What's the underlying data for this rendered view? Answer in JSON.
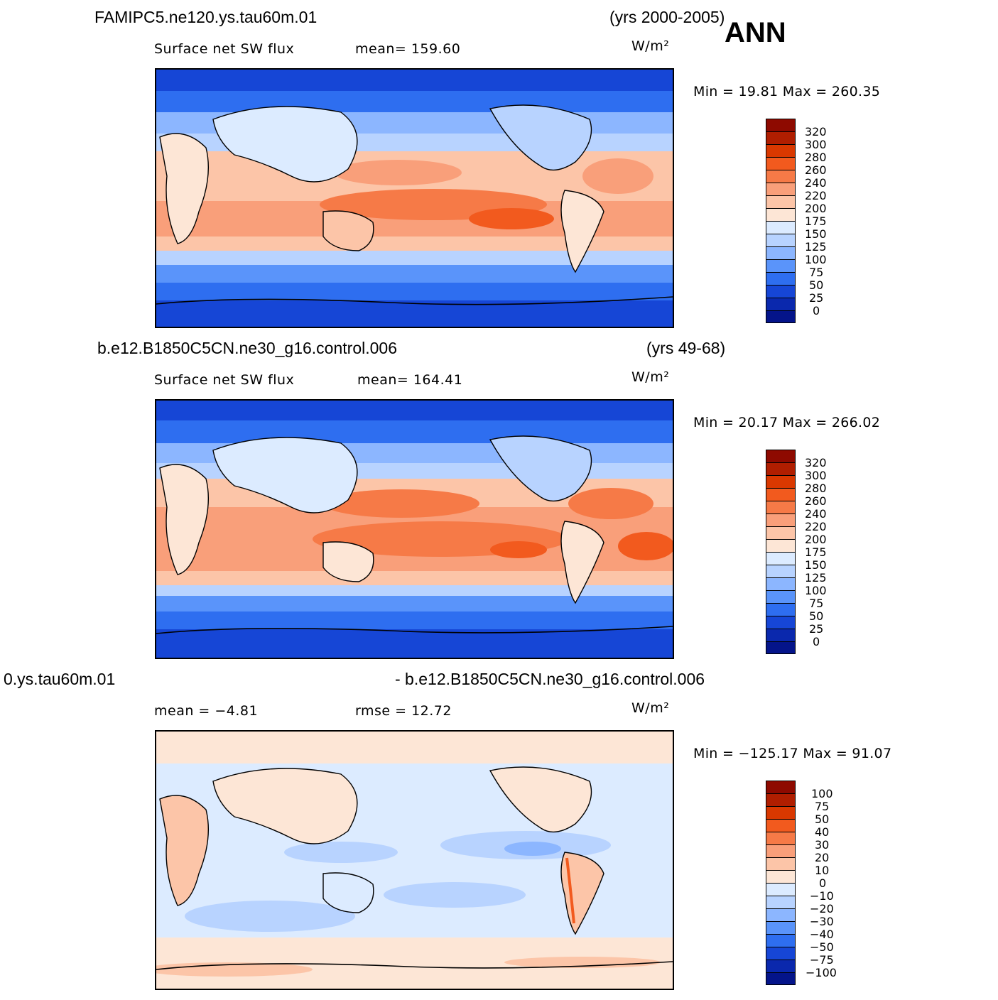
{
  "season": "ANN",
  "units": "W/m²",
  "panels": [
    {
      "case": "FAMIPC5.ne120.ys.tau60m.01",
      "years": "(yrs 2000-2005)",
      "variable": "Surface net SW flux",
      "stat": "mean=  159.60",
      "minmax": "Min =   19.81  Max  =  260.35",
      "levels": [
        "320",
        "300",
        "280",
        "260",
        "240",
        "220",
        "200",
        "175",
        "150",
        "125",
        "100",
        "75",
        "50",
        "25",
        "0"
      ]
    },
    {
      "case": "b.e12.B1850C5CN.ne30_g16.control.006",
      "years": "(yrs 49-68)",
      "variable": "Surface net SW flux",
      "stat": "mean=  164.41",
      "minmax": "Min =   20.17  Max  =  266.02",
      "levels": [
        "320",
        "300",
        "280",
        "260",
        "240",
        "220",
        "200",
        "175",
        "150",
        "125",
        "100",
        "75",
        "50",
        "25",
        "0"
      ]
    },
    {
      "case": "0.ys.tau60m.01",
      "years": "- b.e12.B1850C5CN.ne30_g16.control.006",
      "variable": "mean  =   −4.81",
      "stat": "rmse  =    12.72",
      "minmax": "Min  =  −125.17  Max  =    91.07",
      "levels": [
        "100",
        "75",
        "50",
        "40",
        "30",
        "20",
        "10",
        "0",
        "−10",
        "−20",
        "−30",
        "−40",
        "−50",
        "−75",
        "−100"
      ]
    }
  ],
  "colors": {
    "abs_scale": [
      "#8e0a00",
      "#b01e00",
      "#d93800",
      "#f25a1e",
      "#f67a47",
      "#f99f7a",
      "#fcc5a8",
      "#fde6d6",
      "#dcebff",
      "#b8d3ff",
      "#8cb6ff",
      "#5a94fa",
      "#2e6ef0",
      "#1646d6",
      "#0a28ad",
      "#04148a"
    ],
    "diff_scale": [
      "#8e0a00",
      "#b01e00",
      "#d93800",
      "#f25a1e",
      "#f67a47",
      "#f99f7a",
      "#fcc5a8",
      "#fde6d6",
      "#dcebff",
      "#b8d3ff",
      "#8cb6ff",
      "#5a94fa",
      "#2e6ef0",
      "#1646d6",
      "#0a28ad",
      "#04148a"
    ]
  }
}
